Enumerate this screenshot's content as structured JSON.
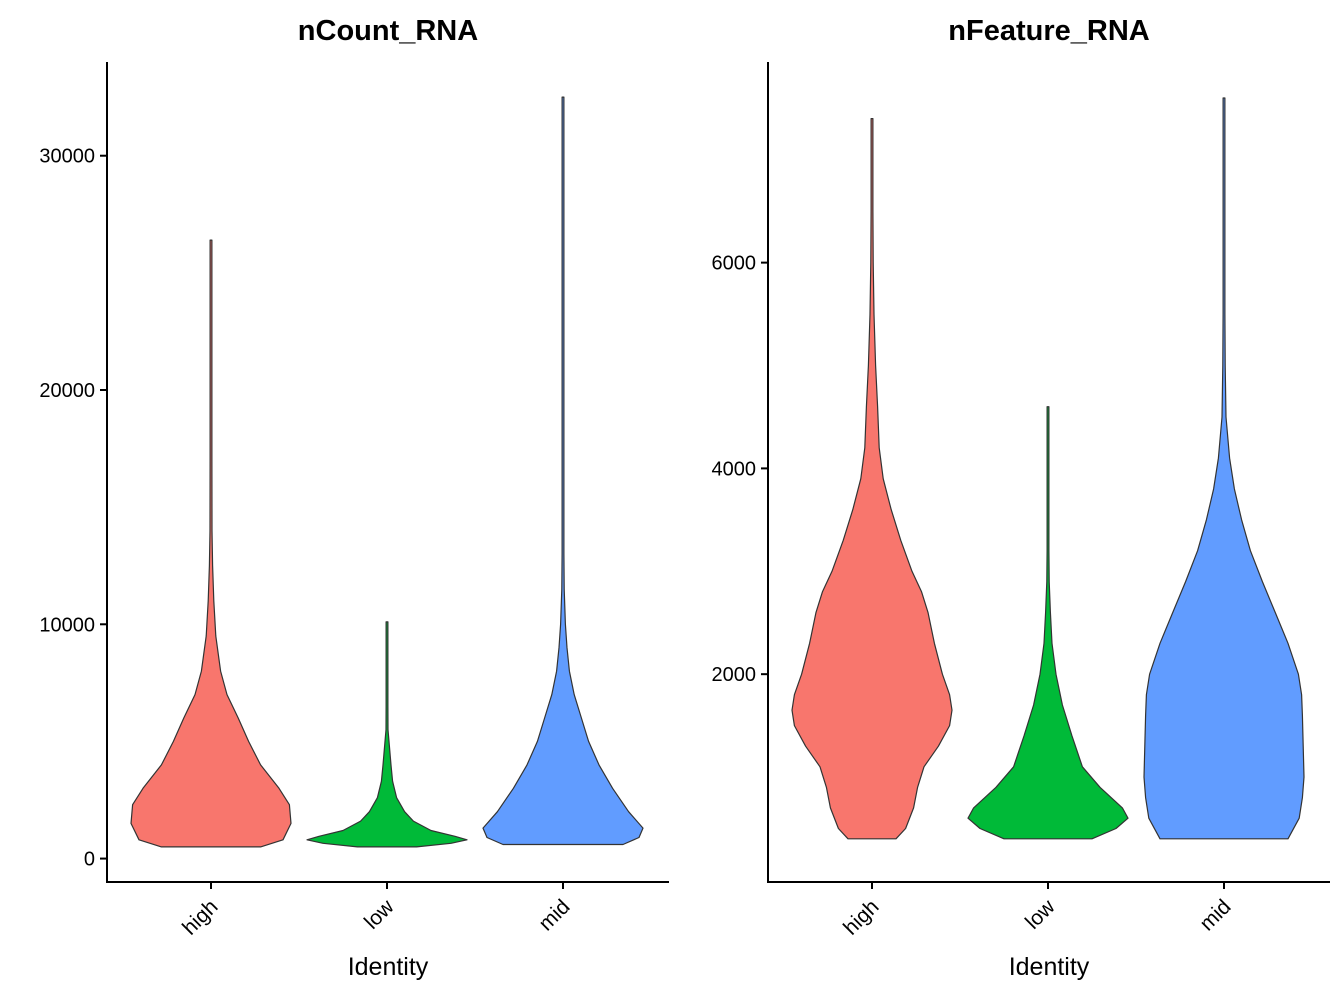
{
  "chart_data": [
    {
      "type": "violin",
      "title": "nCount_RNA",
      "xlabel": "Identity",
      "ylabel": "",
      "categories": [
        "high",
        "low",
        "mid"
      ],
      "colors": [
        "#F8766D",
        "#00BA38",
        "#619CFF"
      ],
      "ylim": [
        -1000,
        34000
      ],
      "yticks": [
        0,
        10000,
        20000,
        30000
      ],
      "ytick_labels": [
        "0",
        "10000",
        "20000",
        "30000"
      ],
      "series": [
        {
          "name": "high",
          "min": 500,
          "max": 26400,
          "widths": [
            [
              500,
              0.62
            ],
            [
              800,
              0.9
            ],
            [
              1500,
              1.0
            ],
            [
              2300,
              0.98
            ],
            [
              3000,
              0.85
            ],
            [
              4000,
              0.62
            ],
            [
              5000,
              0.47
            ],
            [
              6000,
              0.34
            ],
            [
              7000,
              0.2
            ],
            [
              8000,
              0.12
            ],
            [
              9500,
              0.06
            ],
            [
              11000,
              0.035
            ],
            [
              12500,
              0.02
            ],
            [
              14000,
              0.012
            ],
            [
              17000,
              0.008
            ],
            [
              17800,
              0.006
            ],
            [
              18500,
              0.003
            ],
            [
              26400,
              0.002
            ]
          ]
        },
        {
          "name": "low",
          "min": 500,
          "max": 10100,
          "widths": [
            [
              500,
              0.37
            ],
            [
              650,
              0.8
            ],
            [
              800,
              1.0
            ],
            [
              950,
              0.85
            ],
            [
              1200,
              0.55
            ],
            [
              1600,
              0.33
            ],
            [
              2000,
              0.22
            ],
            [
              2600,
              0.12
            ],
            [
              3300,
              0.07
            ],
            [
              4000,
              0.05
            ],
            [
              4800,
              0.03
            ],
            [
              5500,
              0.012
            ],
            [
              6500,
              0.008
            ],
            [
              7000,
              0.005
            ],
            [
              10100,
              0.003
            ]
          ]
        },
        {
          "name": "mid",
          "min": 600,
          "max": 32500,
          "widths": [
            [
              600,
              0.75
            ],
            [
              900,
              0.95
            ],
            [
              1300,
              1.0
            ],
            [
              2000,
              0.82
            ],
            [
              3000,
              0.62
            ],
            [
              4000,
              0.45
            ],
            [
              5000,
              0.32
            ],
            [
              6000,
              0.23
            ],
            [
              7000,
              0.14
            ],
            [
              8000,
              0.08
            ],
            [
              9000,
              0.05
            ],
            [
              10000,
              0.03
            ],
            [
              11500,
              0.015
            ],
            [
              13000,
              0.01
            ],
            [
              16000,
              0.007
            ],
            [
              20000,
              0.004
            ],
            [
              32500,
              0.002
            ]
          ]
        }
      ]
    },
    {
      "type": "violin",
      "title": "nFeature_RNA",
      "xlabel": "Identity",
      "ylabel": "",
      "categories": [
        "high",
        "low",
        "mid"
      ],
      "colors": [
        "#F8766D",
        "#00BA38",
        "#619CFF"
      ],
      "ylim": [
        -20,
        7950
      ],
      "yticks": [
        2000,
        4000,
        6000
      ],
      "ytick_labels": [
        "2000",
        "4000",
        "6000"
      ],
      "series": [
        {
          "name": "high",
          "min": 400,
          "max": 7400,
          "widths": [
            [
              400,
              0.3
            ],
            [
              500,
              0.42
            ],
            [
              700,
              0.52
            ],
            [
              900,
              0.57
            ],
            [
              1100,
              0.65
            ],
            [
              1300,
              0.83
            ],
            [
              1500,
              0.97
            ],
            [
              1650,
              1.0
            ],
            [
              1800,
              0.97
            ],
            [
              2000,
              0.88
            ],
            [
              2300,
              0.78
            ],
            [
              2600,
              0.7
            ],
            [
              2800,
              0.62
            ],
            [
              3000,
              0.5
            ],
            [
              3300,
              0.36
            ],
            [
              3600,
              0.24
            ],
            [
              3900,
              0.14
            ],
            [
              4200,
              0.09
            ],
            [
              4600,
              0.07
            ],
            [
              5000,
              0.045
            ],
            [
              5500,
              0.025
            ],
            [
              6000,
              0.015
            ],
            [
              6500,
              0.01
            ],
            [
              7400,
              0.004
            ]
          ]
        },
        {
          "name": "low",
          "min": 400,
          "max": 4600,
          "widths": [
            [
              400,
              0.55
            ],
            [
              500,
              0.85
            ],
            [
              600,
              1.0
            ],
            [
              700,
              0.93
            ],
            [
              900,
              0.65
            ],
            [
              1100,
              0.43
            ],
            [
              1400,
              0.3
            ],
            [
              1700,
              0.18
            ],
            [
              2000,
              0.1
            ],
            [
              2300,
              0.05
            ],
            [
              2600,
              0.03
            ],
            [
              2900,
              0.015
            ],
            [
              3200,
              0.008
            ],
            [
              3600,
              0.005
            ],
            [
              4600,
              0.004
            ]
          ]
        },
        {
          "name": "mid",
          "min": 400,
          "max": 7600,
          "widths": [
            [
              400,
              0.8
            ],
            [
              600,
              0.94
            ],
            [
              800,
              0.98
            ],
            [
              1000,
              1.0
            ],
            [
              1300,
              0.99
            ],
            [
              1600,
              0.98
            ],
            [
              1800,
              0.97
            ],
            [
              2000,
              0.93
            ],
            [
              2300,
              0.8
            ],
            [
              2600,
              0.64
            ],
            [
              2900,
              0.48
            ],
            [
              3200,
              0.33
            ],
            [
              3500,
              0.22
            ],
            [
              3800,
              0.13
            ],
            [
              4100,
              0.07
            ],
            [
              4500,
              0.025
            ],
            [
              5000,
              0.015
            ],
            [
              5500,
              0.01
            ],
            [
              7600,
              0.005
            ]
          ]
        }
      ]
    }
  ]
}
